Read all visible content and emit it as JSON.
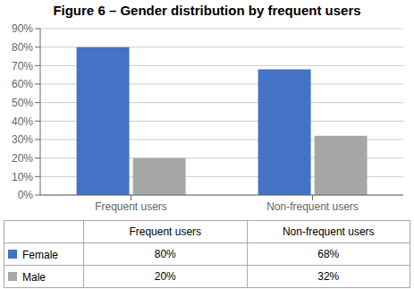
{
  "chart_data": {
    "type": "bar",
    "title": "Figure 6 – Gender distribution by frequent users",
    "categories": [
      "Frequent users",
      "Non-frequent users"
    ],
    "series": [
      {
        "name": "Female",
        "color": "#4472C4",
        "values": [
          0.8,
          0.68
        ],
        "value_labels": [
          "80%",
          "68%"
        ]
      },
      {
        "name": "Male",
        "color": "#A6A6A6",
        "values": [
          0.2,
          0.32
        ],
        "value_labels": [
          "20%",
          "32%"
        ]
      }
    ],
    "ylim": [
      0,
      0.9
    ],
    "yticks": [
      {
        "value": 0.0,
        "label": "0%"
      },
      {
        "value": 0.1,
        "label": "10%"
      },
      {
        "value": 0.2,
        "label": "20%"
      },
      {
        "value": 0.3,
        "label": "30%"
      },
      {
        "value": 0.4,
        "label": "40%"
      },
      {
        "value": 0.5,
        "label": "50%"
      },
      {
        "value": 0.6,
        "label": "60%"
      },
      {
        "value": 0.7,
        "label": "70%"
      },
      {
        "value": 0.8,
        "label": "80%"
      },
      {
        "value": 0.9,
        "label": "90%"
      }
    ],
    "grid": true,
    "legend": "bottom"
  }
}
